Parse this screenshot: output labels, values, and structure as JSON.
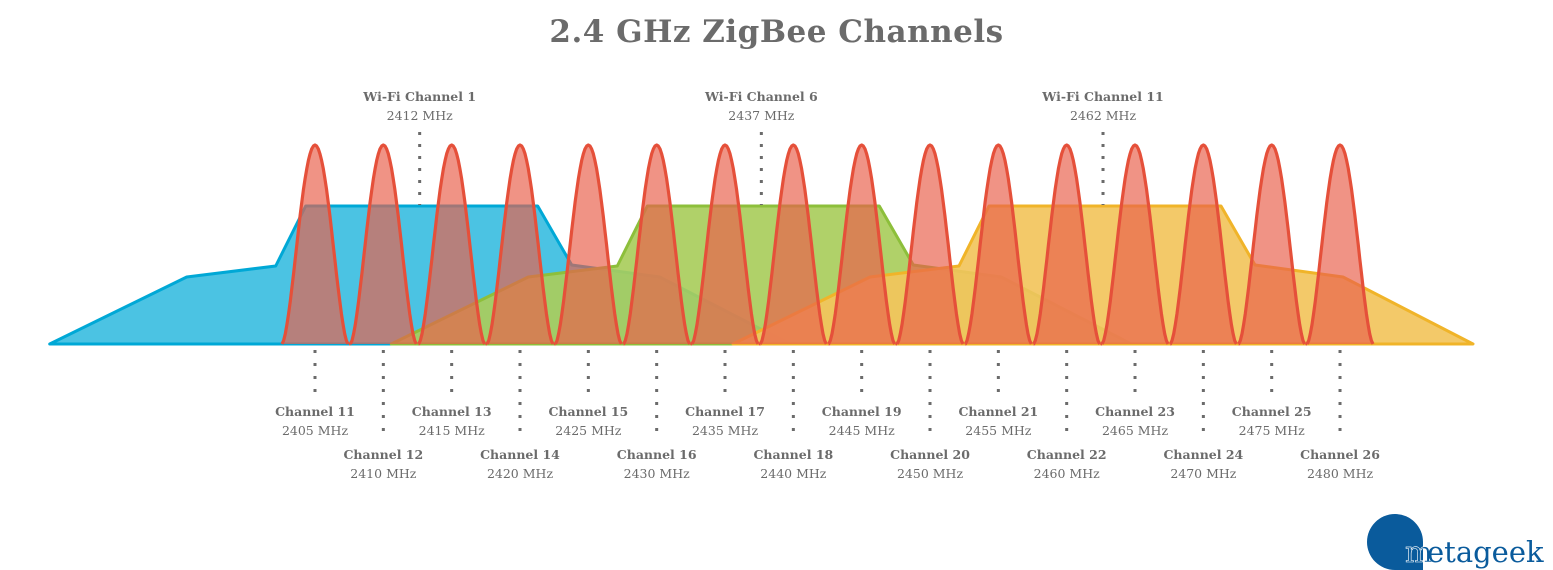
{
  "title": "2.4 GHz ZigBee Channels",
  "unit": "MHz",
  "colors": {
    "zigbee_stroke": "#e5503a",
    "zigbee_fill": "#e9604b",
    "wifi1_fill": "#4bc3e3",
    "wifi1_stroke": "#00a8d6",
    "wifi6_fill": "#a9cd5c",
    "wifi6_stroke": "#8dbf3b",
    "wifi11_fill": "#f2c45c",
    "wifi11_stroke": "#f0b429",
    "text": "#6b6b6b",
    "logo": "#0a5b9c"
  },
  "wifi_channels": [
    {
      "label": "Wi-Fi Channel 1",
      "freq": 2412,
      "freq_label": "2412 MHz"
    },
    {
      "label": "Wi-Fi Channel 6",
      "freq": 2437,
      "freq_label": "2437 MHz"
    },
    {
      "label": "Wi-Fi Channel 11",
      "freq": 2462,
      "freq_label": "2462 MHz"
    }
  ],
  "zigbee_channels": [
    {
      "label": "Channel 11",
      "freq": 2405,
      "freq_label": "2405 MHz"
    },
    {
      "label": "Channel 12",
      "freq": 2410,
      "freq_label": "2410 MHz"
    },
    {
      "label": "Channel 13",
      "freq": 2415,
      "freq_label": "2415 MHz"
    },
    {
      "label": "Channel 14",
      "freq": 2420,
      "freq_label": "2420 MHz"
    },
    {
      "label": "Channel 15",
      "freq": 2425,
      "freq_label": "2425 MHz"
    },
    {
      "label": "Channel 16",
      "freq": 2430,
      "freq_label": "2430 MHz"
    },
    {
      "label": "Channel 17",
      "freq": 2435,
      "freq_label": "2435 MHz"
    },
    {
      "label": "Channel 18",
      "freq": 2440,
      "freq_label": "2440 MHz"
    },
    {
      "label": "Channel 19",
      "freq": 2445,
      "freq_label": "2445 MHz"
    },
    {
      "label": "Channel 20",
      "freq": 2450,
      "freq_label": "2450 MHz"
    },
    {
      "label": "Channel 21",
      "freq": 2455,
      "freq_label": "2455 MHz"
    },
    {
      "label": "Channel 22",
      "freq": 2460,
      "freq_label": "2460 MHz"
    },
    {
      "label": "Channel 23",
      "freq": 2465,
      "freq_label": "2465 MHz"
    },
    {
      "label": "Channel 24",
      "freq": 2470,
      "freq_label": "2470 MHz"
    },
    {
      "label": "Channel 25",
      "freq": 2475,
      "freq_label": "2475 MHz"
    },
    {
      "label": "Channel 26",
      "freq": 2480,
      "freq_label": "2480 MHz"
    }
  ],
  "logo": {
    "text": "metageek"
  }
}
